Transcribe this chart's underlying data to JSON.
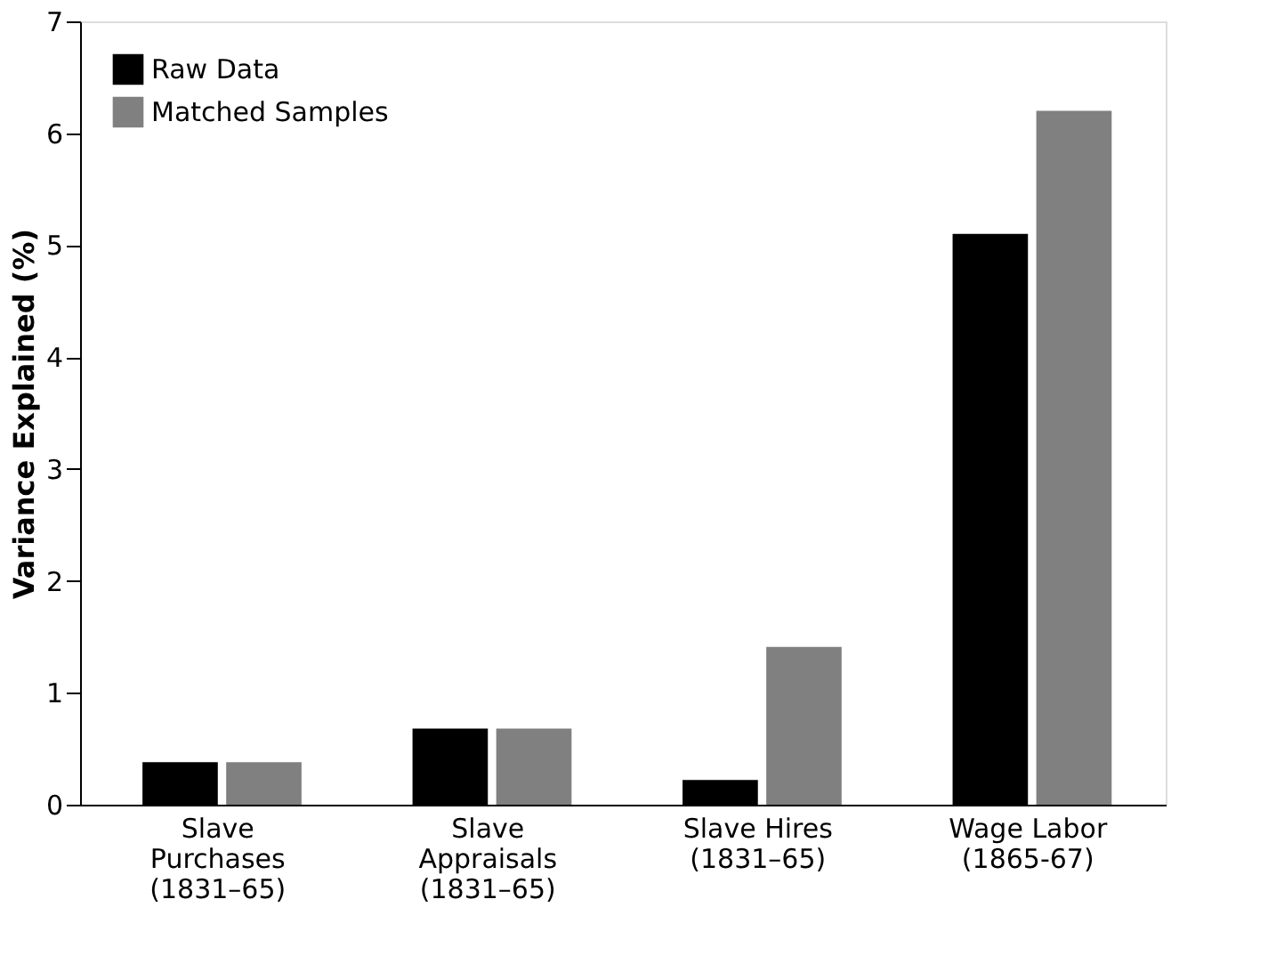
{
  "chart_data": {
    "type": "bar",
    "ylabel": "Variance Explained (%)",
    "categories": [
      "Slave\nPurchases\n(1831–65)",
      "Slave\nAppraisals\n(1831–65)",
      "Slave Hires\n(1831–65)",
      "Wage Labor\n(1865-67)"
    ],
    "series": [
      {
        "name": "Raw Data",
        "color": "#000000",
        "values": [
          0.38,
          0.68,
          0.22,
          5.1
        ]
      },
      {
        "name": "Matched Samples",
        "color": "#808080",
        "values": [
          0.38,
          0.68,
          1.41,
          6.2
        ]
      }
    ],
    "ylim": [
      0,
      7
    ],
    "yticks": [
      0,
      1,
      2,
      3,
      4,
      5,
      6,
      7
    ],
    "grid": false,
    "legend": "top left"
  }
}
